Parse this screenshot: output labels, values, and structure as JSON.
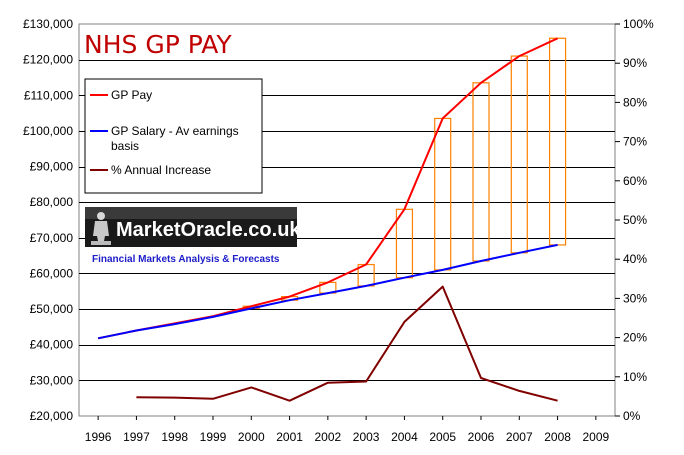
{
  "chart_data": {
    "type": "line",
    "title": "NHS GP PAY",
    "x": [
      1996,
      1997,
      1998,
      1999,
      2000,
      2001,
      2002,
      2003,
      2004,
      2005,
      2006,
      2007,
      2008,
      2009
    ],
    "x_tick_labels": [
      "1996",
      "1997",
      "1998",
      "1999",
      "2000",
      "2001",
      "2002",
      "2003",
      "2004",
      "2005",
      "2006",
      "2007",
      "2008",
      "2009"
    ],
    "xlim": [
      1995.5,
      2009.5
    ],
    "ylim_left": [
      20000,
      130000
    ],
    "y_left_ticks": [
      20000,
      30000,
      40000,
      50000,
      60000,
      70000,
      80000,
      90000,
      100000,
      110000,
      120000,
      130000
    ],
    "y_left_tick_labels": [
      "£20,000",
      "£30,000",
      "£40,000",
      "£50,000",
      "£60,000",
      "£70,000",
      "£80,000",
      "£90,000",
      "£100,000",
      "£110,000",
      "£120,000",
      "£130,000"
    ],
    "ylim_right": [
      0,
      100
    ],
    "y_right_ticks": [
      0,
      10,
      20,
      30,
      40,
      50,
      60,
      70,
      80,
      90,
      100
    ],
    "y_right_tick_labels": [
      "0%",
      "10%",
      "20%",
      "30%",
      "40%",
      "50%",
      "60%",
      "70%",
      "80%",
      "90%",
      "100%"
    ],
    "series": [
      {
        "name": "GP Pay",
        "axis": "left",
        "color": "#ff0000",
        "x": [
          1996,
          1997,
          1998,
          1999,
          2000,
          2001,
          2002,
          2003,
          2004,
          2005,
          2006,
          2007,
          2008
        ],
        "values": [
          41800,
          44000,
          46000,
          48000,
          50800,
          53500,
          57500,
          62500,
          78000,
          103500,
          113500,
          121000,
          126000
        ]
      },
      {
        "name": "GP Salary  - Av earnings basis",
        "axis": "left",
        "color": "#0000ff",
        "x": [
          1996,
          1997,
          1998,
          1999,
          2000,
          2001,
          2002,
          2003,
          2004,
          2005,
          2006,
          2007,
          2008
        ],
        "values": [
          41800,
          44000,
          45800,
          47800,
          50200,
          52500,
          54500,
          56500,
          58800,
          61000,
          63500,
          65800,
          68000
        ]
      },
      {
        "name": "% Annual Increase",
        "axis": "right",
        "color": "#800000",
        "x": [
          1997,
          1998,
          1999,
          2000,
          2001,
          2002,
          2003,
          2004,
          2005,
          2006,
          2007,
          2008
        ],
        "values": [
          4.8,
          4.7,
          4.4,
          7.3,
          3.9,
          8.5,
          8.8,
          24,
          33,
          9.7,
          6.4,
          3.9
        ]
      }
    ],
    "gap_bars": {
      "color": "#ff8000",
      "x": [
        2000,
        2001,
        2002,
        2003,
        2004,
        2005,
        2006,
        2007,
        2008
      ]
    },
    "legend": {
      "placement": "top-left"
    },
    "grid": true
  },
  "watermark": {
    "brand": "MarketOracle.co.uk",
    "tagline": "Financial Markets Analysis & Forecasts"
  }
}
